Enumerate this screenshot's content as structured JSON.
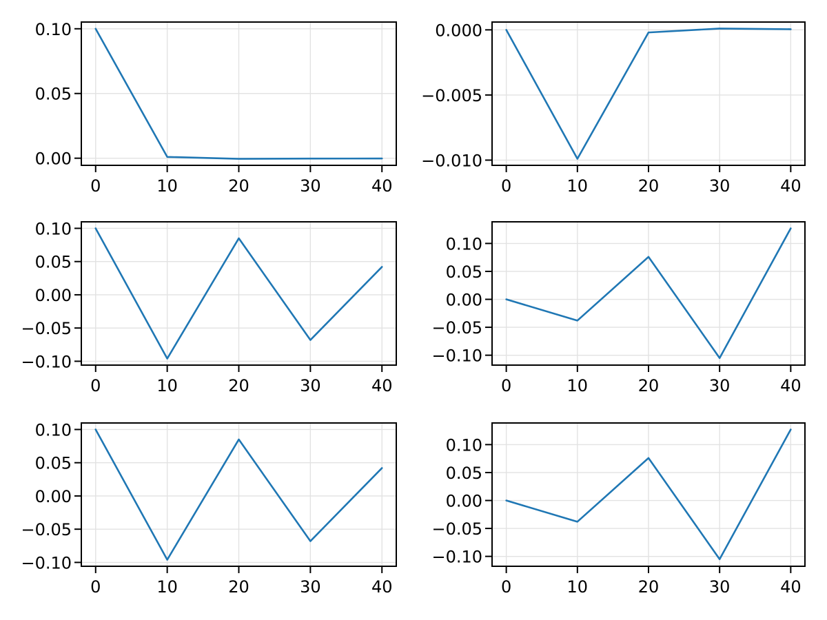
{
  "figure": {
    "background": "#ffffff",
    "line_color": "#1f77b4",
    "grid_color": "#e2e2e2",
    "spine_color": "#000000",
    "tick_color": "#000000",
    "tick_label_color": "#000000"
  },
  "chart_data": [
    {
      "id": "top-left",
      "type": "line",
      "title": "",
      "xlabel": "",
      "ylabel": "",
      "grid": true,
      "legend": null,
      "x": [
        0,
        10,
        20,
        30,
        40
      ],
      "y": [
        0.1,
        0.001,
        -0.0005,
        -0.0003,
        -0.0002
      ],
      "xlim": [
        -2,
        42
      ],
      "ylim": [
        -0.0055,
        0.1052
      ],
      "xticks": [
        0,
        10,
        20,
        30,
        40
      ],
      "xtick_labels": [
        "0",
        "10",
        "20",
        "30",
        "40"
      ],
      "yticks": [
        0.0,
        0.05,
        0.1
      ],
      "ytick_labels": [
        "0.00",
        "0.05",
        "0.10"
      ]
    },
    {
      "id": "top-right",
      "type": "line",
      "title": "",
      "xlabel": "",
      "ylabel": "",
      "grid": true,
      "legend": null,
      "x": [
        0,
        10,
        20,
        30,
        40
      ],
      "y": [
        0.0,
        -0.0099,
        -0.0002,
        0.0001,
        5e-05
      ],
      "xlim": [
        -2,
        42
      ],
      "ylim": [
        -0.0104,
        0.0006
      ],
      "xticks": [
        0,
        10,
        20,
        30,
        40
      ],
      "xtick_labels": [
        "0",
        "10",
        "20",
        "30",
        "40"
      ],
      "yticks": [
        0.0,
        -0.005,
        -0.01
      ],
      "ytick_labels": [
        "0.000",
        "−0.005",
        "−0.010"
      ]
    },
    {
      "id": "middle-left",
      "type": "line",
      "title": "",
      "xlabel": "",
      "ylabel": "",
      "grid": true,
      "legend": null,
      "x": [
        0,
        10,
        20,
        30,
        40
      ],
      "y": [
        0.1,
        -0.096,
        0.085,
        -0.068,
        0.042
      ],
      "xlim": [
        -2,
        42
      ],
      "ylim": [
        -0.1058,
        0.1098
      ],
      "xticks": [
        0,
        10,
        20,
        30,
        40
      ],
      "xtick_labels": [
        "0",
        "10",
        "20",
        "30",
        "40"
      ],
      "yticks": [
        0.1,
        0.05,
        0.0,
        -0.05,
        -0.1
      ],
      "ytick_labels": [
        "0.10",
        "0.05",
        "0.00",
        "−0.05",
        "−0.10"
      ]
    },
    {
      "id": "middle-right",
      "type": "line",
      "title": "",
      "xlabel": "",
      "ylabel": "",
      "grid": true,
      "legend": null,
      "x": [
        0,
        10,
        20,
        30,
        40
      ],
      "y": [
        0.0,
        -0.038,
        0.076,
        -0.105,
        0.127
      ],
      "xlim": [
        -2,
        42
      ],
      "ylim": [
        -0.1177,
        0.1387
      ],
      "xticks": [
        0,
        10,
        20,
        30,
        40
      ],
      "xtick_labels": [
        "0",
        "10",
        "20",
        "30",
        "40"
      ],
      "yticks": [
        0.1,
        0.05,
        0.0,
        -0.05,
        -0.1
      ],
      "ytick_labels": [
        "0.10",
        "0.05",
        "0.00",
        "−0.05",
        "−0.10"
      ]
    },
    {
      "id": "bottom-left",
      "type": "line",
      "title": "",
      "xlabel": "",
      "ylabel": "",
      "grid": true,
      "legend": null,
      "x": [
        0,
        10,
        20,
        30,
        40
      ],
      "y": [
        0.1,
        -0.096,
        0.085,
        -0.068,
        0.042
      ],
      "xlim": [
        -2,
        42
      ],
      "ylim": [
        -0.1058,
        0.1098
      ],
      "xticks": [
        0,
        10,
        20,
        30,
        40
      ],
      "xtick_labels": [
        "0",
        "10",
        "20",
        "30",
        "40"
      ],
      "yticks": [
        0.1,
        0.05,
        0.0,
        -0.05,
        -0.1
      ],
      "ytick_labels": [
        "0.10",
        "0.05",
        "0.00",
        "−0.05",
        "−0.10"
      ]
    },
    {
      "id": "bottom-right",
      "type": "line",
      "title": "",
      "xlabel": "",
      "ylabel": "",
      "grid": true,
      "legend": null,
      "x": [
        0,
        10,
        20,
        30,
        40
      ],
      "y": [
        0.0,
        -0.038,
        0.076,
        -0.105,
        0.127
      ],
      "xlim": [
        -2,
        42
      ],
      "ylim": [
        -0.1177,
        0.1387
      ],
      "xticks": [
        0,
        10,
        20,
        30,
        40
      ],
      "xtick_labels": [
        "0",
        "10",
        "20",
        "30",
        "40"
      ],
      "yticks": [
        0.1,
        0.05,
        0.0,
        -0.05,
        -0.1
      ],
      "ytick_labels": [
        "0.10",
        "0.05",
        "0.00",
        "−0.05",
        "−0.10"
      ]
    }
  ]
}
